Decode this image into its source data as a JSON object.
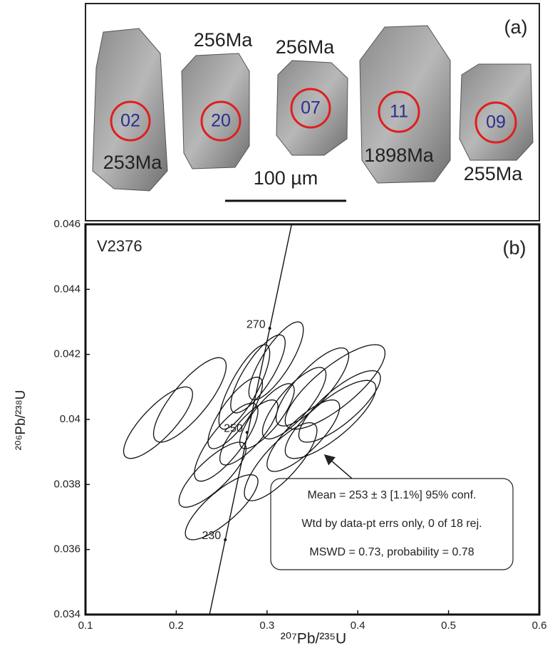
{
  "panel_a": {
    "label": "(a)",
    "scale": "100 µm",
    "grains": [
      {
        "spot": "02",
        "age": "253Ma"
      },
      {
        "spot": "20",
        "age": "256Ma"
      },
      {
        "spot": "07",
        "age": "256Ma"
      },
      {
        "spot": "11",
        "age": "1898Ma"
      },
      {
        "spot": "09",
        "age": "255Ma"
      }
    ]
  },
  "chart_data": {
    "type": "concordia",
    "sample": "V2376",
    "panel_label": "(b)",
    "xlabel": "²⁰⁷Pb/²³⁵U",
    "ylabel": "²⁰⁶Pb/²³⁸U",
    "xlim": [
      0.1,
      0.6
    ],
    "ylim": [
      0.034,
      0.046
    ],
    "xticks": [
      0.1,
      0.2,
      0.3,
      0.4,
      0.5,
      0.6
    ],
    "yticks": [
      0.034,
      0.036,
      0.038,
      0.04,
      0.042,
      0.044,
      0.046
    ],
    "concordia": {
      "ages": [
        230,
        250,
        270
      ],
      "x": [
        0.254,
        0.278,
        0.303
      ],
      "y": [
        0.0363,
        0.0396,
        0.0428
      ]
    },
    "rho": 0.8,
    "series": [
      {
        "name": "V2376",
        "color": "#111111",
        "x": [
          0.18,
          0.215,
          0.24,
          0.25,
          0.255,
          0.265,
          0.275,
          0.28,
          0.29,
          0.3,
          0.31,
          0.315,
          0.33,
          0.34,
          0.35,
          0.37,
          0.38,
          0.375
        ],
        "x_err": [
          0.038,
          0.04,
          0.037,
          0.04,
          0.035,
          0.03,
          0.028,
          0.032,
          0.03,
          0.03,
          0.03,
          0.04,
          0.035,
          0.04,
          0.04,
          0.05,
          0.045,
          0.055
        ],
        "y": [
          0.0399,
          0.0406,
          0.0383,
          0.0373,
          0.0393,
          0.0402,
          0.041,
          0.0396,
          0.0414,
          0.0401,
          0.0418,
          0.0387,
          0.0405,
          0.0395,
          0.041,
          0.04,
          0.0404,
          0.041
        ],
        "y_err": [
          0.0011,
          0.0013,
          0.001,
          0.001,
          0.0012,
          0.0011,
          0.0013,
          0.001,
          0.0012,
          0.001,
          0.0012,
          0.0012,
          0.0011,
          0.0011,
          0.0012,
          0.0012,
          0.0011,
          0.0013
        ]
      }
    ],
    "annotation": [
      "Mean = 253 ±  3  [1.1%]  95% conf.",
      "Wtd by data-pt errs only, 0 of 18 rej.",
      "MSWD = 0.73, probability = 0.78"
    ]
  }
}
